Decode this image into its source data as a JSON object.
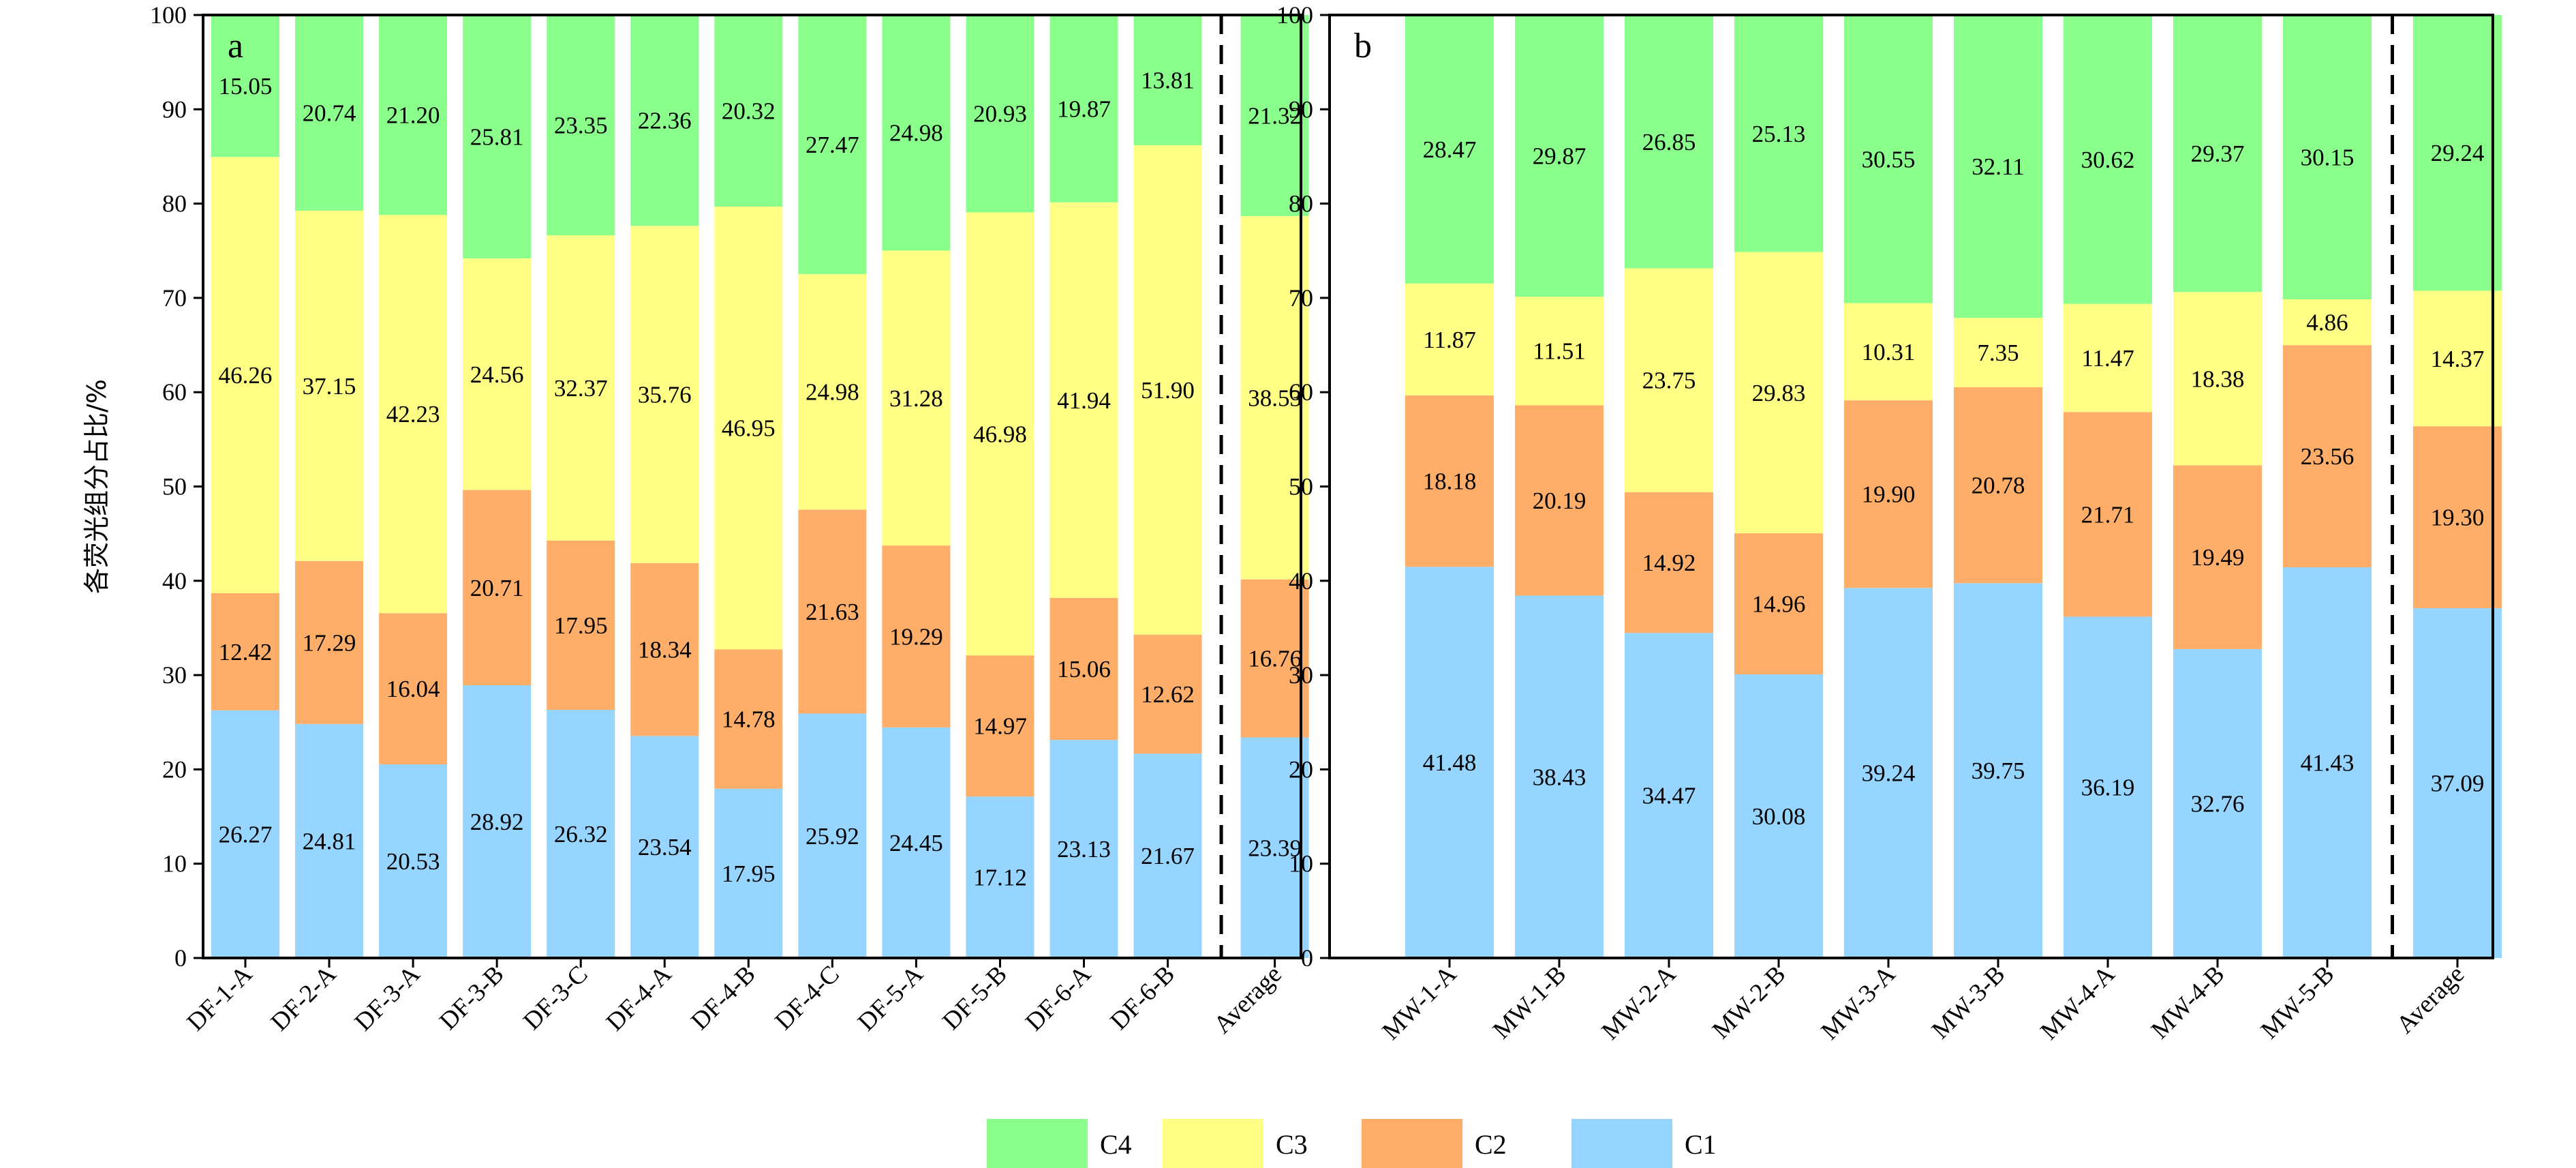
{
  "chart_data": [
    {
      "type": "bar",
      "stacked": true,
      "panel_letter": "a",
      "ylabel": "各荧光组分占比/%",
      "ylim": [
        0,
        100
      ],
      "yticks": [
        "0",
        "10",
        "20",
        "30",
        "40",
        "50",
        "60",
        "70",
        "80",
        "90",
        "100"
      ],
      "categories": [
        "DF-1-A",
        "DF-2-A",
        "DF-3-A",
        "DF-3-B",
        "DF-3-C",
        "DF-4-A",
        "DF-4-B",
        "DF-4-C",
        "DF-5-A",
        "DF-5-B",
        "DF-6-A",
        "DF-6-B",
        "Average"
      ],
      "series": [
        {
          "name": "C1",
          "values": [
            26.27,
            24.81,
            20.53,
            28.92,
            26.32,
            23.54,
            17.95,
            25.92,
            24.45,
            17.12,
            23.13,
            21.67,
            23.39
          ],
          "labels": [
            "26.27",
            "24.81",
            "20.53",
            "28.92",
            "26.32",
            "23.54",
            "17.95",
            "25.92",
            "24.45",
            "17.12",
            "23.13",
            "21.67",
            "23.39"
          ]
        },
        {
          "name": "C2",
          "values": [
            12.42,
            17.29,
            16.04,
            20.71,
            17.95,
            18.34,
            14.78,
            21.63,
            19.29,
            14.97,
            15.06,
            12.62,
            16.76
          ],
          "labels": [
            "12.42",
            "17.29",
            "16.04",
            "20.71",
            "17.95",
            "18.34",
            "14.78",
            "21.63",
            "19.29",
            "14.97",
            "15.06",
            "12.62",
            "16.76"
          ]
        },
        {
          "name": "C3",
          "values": [
            46.26,
            37.15,
            42.23,
            24.56,
            32.37,
            35.76,
            46.95,
            24.98,
            31.28,
            46.98,
            41.94,
            51.9,
            38.53
          ],
          "labels": [
            "46.26",
            "37.15",
            "42.23",
            "24.56",
            "32.37",
            "35.76",
            "46.95",
            "24.98",
            "31.28",
            "46.98",
            "41.94",
            "51.90",
            "38.53"
          ]
        },
        {
          "name": "C4",
          "values": [
            15.05,
            20.74,
            21.2,
            25.81,
            23.35,
            22.36,
            20.32,
            27.47,
            24.98,
            20.93,
            19.87,
            13.81,
            21.32
          ],
          "labels": [
            "15.05",
            "20.74",
            "21.20",
            "25.81",
            "23.35",
            "22.36",
            "20.32",
            "27.47",
            "24.98",
            "20.93",
            "19.87",
            "13.81",
            "21.32"
          ]
        }
      ]
    },
    {
      "type": "bar",
      "stacked": true,
      "panel_letter": "b",
      "ylim": [
        0,
        100
      ],
      "yticks": [
        "0",
        "10",
        "20",
        "30",
        "40",
        "50",
        "60",
        "70",
        "80",
        "90",
        "100"
      ],
      "categories": [
        "MW-1-A",
        "MW-1-B",
        "MW-2-A",
        "MW-2-B",
        "MW-3-A",
        "MW-3-B",
        "MW-4-A",
        "MW-4-B",
        "MW-5-B",
        "Average"
      ],
      "series": [
        {
          "name": "C1",
          "values": [
            41.48,
            38.43,
            34.47,
            30.08,
            39.24,
            39.75,
            36.19,
            32.76,
            41.43,
            37.09
          ],
          "labels": [
            "41.48",
            "38.43",
            "34.47",
            "30.08",
            "39.24",
            "39.75",
            "36.19",
            "32.76",
            "41.43",
            "37.09"
          ]
        },
        {
          "name": "C2",
          "values": [
            18.18,
            20.19,
            14.92,
            14.96,
            19.9,
            20.78,
            21.71,
            19.49,
            23.56,
            19.3
          ],
          "labels": [
            "18.18",
            "20.19",
            "14.92",
            "14.96",
            "19.90",
            "20.78",
            "21.71",
            "19.49",
            "23.56",
            "19.30"
          ]
        },
        {
          "name": "C3",
          "values": [
            11.87,
            11.51,
            23.75,
            29.83,
            10.31,
            7.35,
            11.47,
            18.38,
            4.86,
            14.37
          ],
          "labels": [
            "11.87",
            "11.51",
            "23.75",
            "29.83",
            "10.31",
            "7.35",
            "11.47",
            "18.38",
            "4.86",
            "14.37"
          ]
        },
        {
          "name": "C4",
          "values": [
            28.47,
            29.87,
            26.85,
            25.13,
            30.55,
            32.11,
            30.62,
            29.37,
            30.15,
            29.24
          ],
          "labels": [
            "28.47",
            "29.87",
            "26.85",
            "25.13",
            "30.55",
            "32.11",
            "30.62",
            "29.37",
            "30.15",
            "29.24"
          ]
        }
      ]
    }
  ],
  "legend": {
    "position": "bottom-center",
    "items": [
      {
        "name": "C4",
        "color": "#8BFF8B"
      },
      {
        "name": "C3",
        "color": "#FFFF85"
      },
      {
        "name": "C2",
        "color": "#FFAE6A"
      },
      {
        "name": "C1",
        "color": "#95D5FF"
      }
    ]
  },
  "colors": {
    "C1": "#95D5FF",
    "C2": "#FFAE6A",
    "C3": "#FFFF85",
    "C4": "#8BFF8B",
    "axis": "#000000"
  }
}
